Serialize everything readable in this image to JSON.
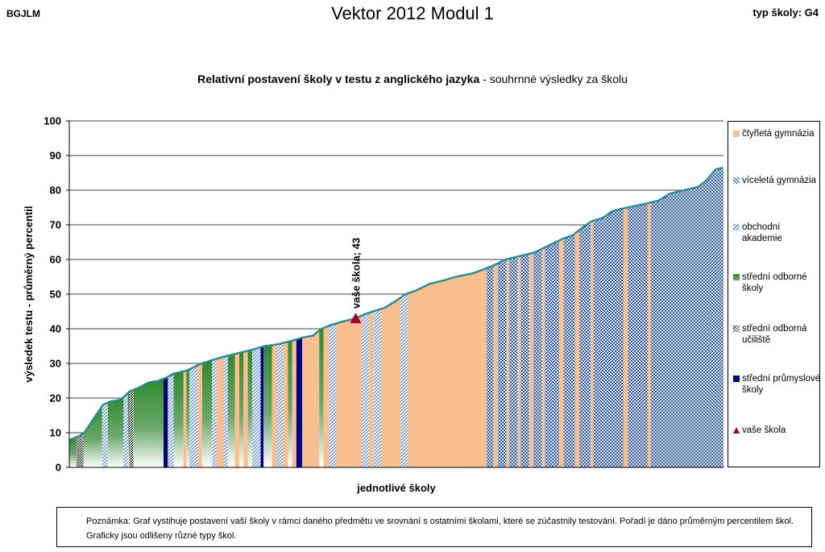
{
  "header": {
    "left": "BGJLM",
    "center": "Vektor 2012 Modul 1",
    "right": "typ školy: G4"
  },
  "colors": {
    "ctyrleta": "#f9bf8f",
    "viceleta": "#1f4e9a",
    "obchodni": "#4f7fd4",
    "stredni_odborne": "#2e8a2e",
    "ucilste": "#000000",
    "prumyslove": "#000080",
    "line": "#2a8a8f",
    "marker": "#a50021"
  },
  "chart_data": {
    "type": "area",
    "title_bold": "Relativní postavení školy v testu z anglického jazyka",
    "title_rest": " - souhrnné výsledky za školu",
    "xlabel": "jednotlivé školy",
    "ylabel": "výsledek testu - průměrný percentil",
    "ylim": [
      0,
      100
    ],
    "yticks": [
      "0",
      "10",
      "20",
      "30",
      "40",
      "50",
      "60",
      "70",
      "80",
      "90",
      "100"
    ],
    "grid": true,
    "legend_position": "right",
    "legend": [
      {
        "key": "ctyrleta",
        "label": "čtyřletá gymnázia"
      },
      {
        "key": "viceleta",
        "label": "víceletá gymnázia"
      },
      {
        "key": "obchodni",
        "label": "obchodní akademie"
      },
      {
        "key": "stredni_odborne",
        "label": "střední odborné školy"
      },
      {
        "key": "ucilste",
        "label": "střední odborná učiliště"
      },
      {
        "key": "prumyslove",
        "label": "střední průmyslové školy"
      },
      {
        "key": "marker",
        "label": "vaše škola"
      }
    ],
    "anchors": [
      [
        0,
        8
      ],
      [
        6,
        9
      ],
      [
        10,
        10
      ],
      [
        14,
        12.5
      ],
      [
        18,
        15
      ],
      [
        23,
        18
      ],
      [
        28,
        19
      ],
      [
        35,
        19.5
      ],
      [
        38,
        20.5
      ],
      [
        42,
        22
      ],
      [
        48,
        23
      ],
      [
        55,
        24.5
      ],
      [
        62,
        25
      ],
      [
        68,
        26
      ],
      [
        72,
        27
      ],
      [
        82,
        28
      ],
      [
        92,
        30
      ],
      [
        100,
        31
      ],
      [
        108,
        32
      ],
      [
        118,
        33
      ],
      [
        128,
        34
      ],
      [
        136,
        35
      ],
      [
        145,
        35.5
      ],
      [
        155,
        36.5
      ],
      [
        163,
        37.5
      ],
      [
        170,
        38
      ],
      [
        176,
        40
      ],
      [
        182,
        41
      ],
      [
        190,
        42
      ],
      [
        200,
        43
      ],
      [
        205,
        44
      ],
      [
        212,
        45
      ],
      [
        220,
        46
      ],
      [
        228,
        48
      ],
      [
        235,
        50
      ],
      [
        242,
        51
      ],
      [
        252,
        53
      ],
      [
        262,
        54
      ],
      [
        270,
        55
      ],
      [
        282,
        56
      ],
      [
        295,
        58
      ],
      [
        305,
        60
      ],
      [
        315,
        61
      ],
      [
        325,
        62
      ],
      [
        335,
        64
      ],
      [
        345,
        66
      ],
      [
        352,
        67
      ],
      [
        358,
        69
      ],
      [
        365,
        71
      ],
      [
        373,
        72
      ],
      [
        380,
        74
      ],
      [
        390,
        75
      ],
      [
        402,
        76
      ],
      [
        412,
        77
      ],
      [
        420,
        79
      ],
      [
        430,
        80
      ],
      [
        440,
        81
      ],
      [
        446,
        83
      ],
      [
        452,
        86
      ],
      [
        457,
        86.5
      ]
    ],
    "n_schools": 458,
    "segments": [
      [
        0,
        5,
        "stredni_odborne"
      ],
      [
        5,
        10,
        "ucilste"
      ],
      [
        10,
        23,
        "stredni_odborne"
      ],
      [
        23,
        27,
        "obchodni"
      ],
      [
        27,
        38,
        "stredni_odborne"
      ],
      [
        38,
        41,
        "obchodni"
      ],
      [
        41,
        42,
        "stredni_odborne"
      ],
      [
        42,
        45,
        "ucilste"
      ],
      [
        45,
        66,
        "stredni_odborne"
      ],
      [
        66,
        69,
        "prumyslove"
      ],
      [
        69,
        73,
        "obchodni"
      ],
      [
        73,
        80,
        "stredni_odborne"
      ],
      [
        80,
        82,
        "ctyrleta"
      ],
      [
        82,
        84,
        "stredni_odborne"
      ],
      [
        84,
        90,
        "obchodni"
      ],
      [
        90,
        93,
        "ctyrleta"
      ],
      [
        93,
        100,
        "stredni_odborne"
      ],
      [
        100,
        103,
        "obchodni"
      ],
      [
        103,
        108,
        "ctyrleta"
      ],
      [
        108,
        111,
        "obchodni"
      ],
      [
        111,
        116,
        "stredni_odborne"
      ],
      [
        116,
        119,
        "ctyrleta"
      ],
      [
        119,
        122,
        "stredni_odborne"
      ],
      [
        122,
        125,
        "ctyrleta"
      ],
      [
        125,
        128,
        "stredni_odborne"
      ],
      [
        128,
        134,
        "obchodni"
      ],
      [
        134,
        136,
        "prumyslove"
      ],
      [
        136,
        142,
        "stredni_odborne"
      ],
      [
        142,
        145,
        "ctyrleta"
      ],
      [
        145,
        150,
        "obchodni"
      ],
      [
        150,
        153,
        "ctyrleta"
      ],
      [
        153,
        156,
        "stredni_odborne"
      ],
      [
        156,
        159,
        "ctyrleta"
      ],
      [
        159,
        163,
        "prumyslove"
      ],
      [
        163,
        175,
        "ctyrleta"
      ],
      [
        175,
        178,
        "stredni_odborne"
      ],
      [
        178,
        182,
        "ctyrleta"
      ],
      [
        182,
        187,
        "obchodni"
      ],
      [
        187,
        205,
        "ctyrleta"
      ],
      [
        205,
        210,
        "obchodni"
      ],
      [
        210,
        213,
        "ctyrleta"
      ],
      [
        213,
        218,
        "obchodni"
      ],
      [
        218,
        232,
        "ctyrleta"
      ],
      [
        232,
        237,
        "obchodni"
      ],
      [
        237,
        292,
        "ctyrleta"
      ],
      [
        292,
        297,
        "viceleta"
      ],
      [
        297,
        300,
        "ctyrleta"
      ],
      [
        300,
        306,
        "viceleta"
      ],
      [
        306,
        308,
        "ctyrleta"
      ],
      [
        308,
        314,
        "viceleta"
      ],
      [
        314,
        316,
        "ctyrleta"
      ],
      [
        316,
        322,
        "viceleta"
      ],
      [
        322,
        325,
        "ctyrleta"
      ],
      [
        325,
        331,
        "viceleta"
      ],
      [
        331,
        333,
        "ctyrleta"
      ],
      [
        333,
        343,
        "viceleta"
      ],
      [
        343,
        346,
        "ctyrleta"
      ],
      [
        346,
        354,
        "viceleta"
      ],
      [
        354,
        357,
        "ctyrleta"
      ],
      [
        357,
        365,
        "viceleta"
      ],
      [
        365,
        367,
        "ctyrleta"
      ],
      [
        367,
        388,
        "viceleta"
      ],
      [
        388,
        391,
        "ctyrleta"
      ],
      [
        391,
        405,
        "viceleta"
      ],
      [
        405,
        407,
        "ctyrleta"
      ],
      [
        407,
        458,
        "viceleta"
      ]
    ],
    "your_school": {
      "index": 200,
      "value": 43,
      "label": "vaše škola; 43"
    }
  },
  "note": "Poznámka: Graf vystihuje postavení vaší školy v rámci daného předmětu ve srovnání s ostatními školami, které se zúčastnily testování. Pořadí je dáno průměrným percentilem škol. Graficky jsou odlišeny různé typy škol."
}
